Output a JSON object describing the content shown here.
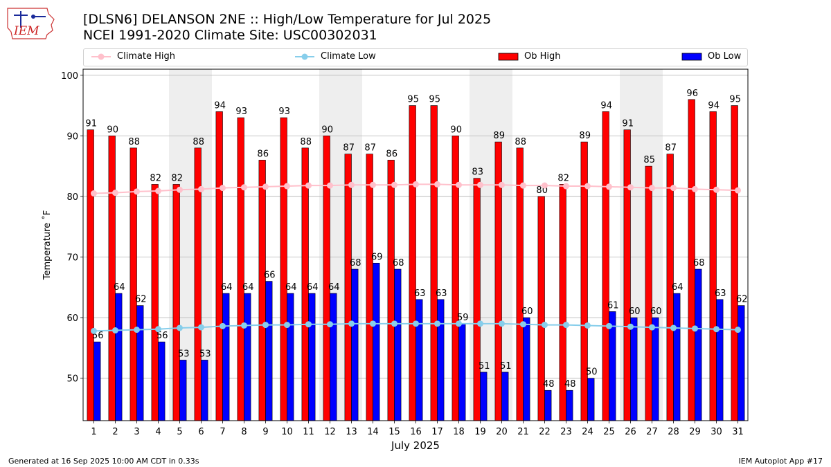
{
  "header": {
    "title_line1": "[DLSN6] DELANSON 2NE :: High/Low Temperature for Jul 2025",
    "title_line2": "NCEI 1991-2020 Climate Site: USC00302031",
    "logo_text": "IEM"
  },
  "legend": {
    "climate_high": "Climate High",
    "climate_low": "Climate Low",
    "ob_high": "Ob High",
    "ob_low": "Ob Low"
  },
  "colors": {
    "ob_high": "#ff0000",
    "ob_low": "#0000ff",
    "climate_high": "#ffc0cb",
    "climate_low": "#87ceeb",
    "weekend_band": "#eeeeee",
    "grid": "#b0b0b0"
  },
  "chart_data": {
    "type": "bar",
    "title": "[DLSN6] DELANSON 2NE :: High/Low Temperature for Jul 2025",
    "subtitle": "NCEI 1991-2020 Climate Site: USC00302031",
    "xlabel": "July 2025",
    "ylabel": "Temperature ˚F",
    "ylim": [
      43,
      101
    ],
    "yticks": [
      50,
      60,
      70,
      80,
      90,
      100
    ],
    "grid": true,
    "legend_position": "top",
    "categories": [
      "1",
      "2",
      "3",
      "4",
      "5",
      "6",
      "7",
      "8",
      "9",
      "10",
      "11",
      "12",
      "13",
      "14",
      "15",
      "16",
      "17",
      "18",
      "19",
      "20",
      "21",
      "22",
      "23",
      "24",
      "25",
      "26",
      "27",
      "28",
      "29",
      "30",
      "31"
    ],
    "weekend_bands": [
      [
        5,
        6
      ],
      [
        12,
        13
      ],
      [
        19,
        20
      ],
      [
        26,
        27
      ]
    ],
    "series": [
      {
        "name": "Ob High",
        "kind": "bar",
        "values": [
          91,
          90,
          88,
          82,
          82,
          88,
          94,
          93,
          86,
          93,
          88,
          90,
          87,
          87,
          86,
          95,
          95,
          90,
          83,
          89,
          88,
          80,
          82,
          89,
          94,
          91,
          85,
          87,
          96,
          94,
          95
        ]
      },
      {
        "name": "Ob Low",
        "kind": "bar",
        "values": [
          56,
          64,
          62,
          56,
          53,
          53,
          64,
          64,
          66,
          64,
          64,
          64,
          68,
          69,
          68,
          63,
          63,
          59,
          51,
          51,
          60,
          48,
          48,
          50,
          61,
          60,
          60,
          64,
          68,
          63,
          62
        ]
      },
      {
        "name": "Climate High",
        "kind": "line",
        "values": [
          80.5,
          80.6,
          80.8,
          80.9,
          81.1,
          81.2,
          81.4,
          81.5,
          81.6,
          81.7,
          81.8,
          81.8,
          81.9,
          81.9,
          81.9,
          82.0,
          82.0,
          81.9,
          81.9,
          81.9,
          81.8,
          81.8,
          81.7,
          81.7,
          81.6,
          81.5,
          81.4,
          81.4,
          81.2,
          81.1,
          81.0
        ]
      },
      {
        "name": "Climate Low",
        "kind": "line",
        "values": [
          57.8,
          57.9,
          58.0,
          58.1,
          58.3,
          58.4,
          58.6,
          58.7,
          58.8,
          58.8,
          58.9,
          58.9,
          59.0,
          59.0,
          59.0,
          59.0,
          59.0,
          59.0,
          59.0,
          59.0,
          58.9,
          58.8,
          58.8,
          58.7,
          58.6,
          58.5,
          58.4,
          58.3,
          58.2,
          58.1,
          58.0
        ]
      }
    ]
  },
  "footer": {
    "generated": "Generated at 16 Sep 2025 10:00 AM CDT in 0.33s",
    "app": "IEM Autoplot App #17"
  }
}
